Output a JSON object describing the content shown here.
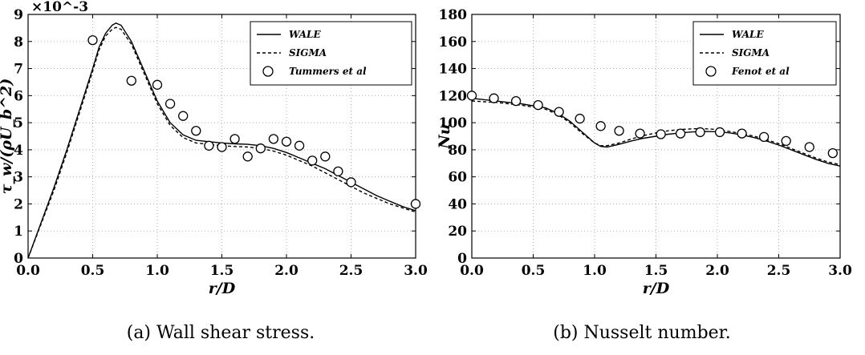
{
  "chart_data": [
    {
      "type": "line",
      "caption": "(a) Wall shear stress.",
      "xlabel": "r/D",
      "ylabel": "τ_w/(ρU_b^2)",
      "y_multiplier": "×10^-3",
      "xlim": [
        0.0,
        3.0
      ],
      "ylim": [
        0,
        9
      ],
      "xticks": [
        0.0,
        0.5,
        1.0,
        1.5,
        2.0,
        2.5,
        3.0
      ],
      "xtick_labels": [
        "0.0",
        "0.5",
        "1.0",
        "1.5",
        "2.0",
        "2.5",
        "3.0"
      ],
      "yticks": [
        0,
        1,
        2,
        3,
        4,
        5,
        6,
        7,
        8,
        9
      ],
      "ytick_labels": [
        "0",
        "1",
        "2",
        "3",
        "4",
        "5",
        "6",
        "7",
        "8",
        "9"
      ],
      "legend_position": "top-right",
      "series": [
        {
          "name": "WALE",
          "style": "solid",
          "x": [
            0.0,
            0.1,
            0.2,
            0.3,
            0.4,
            0.5,
            0.55,
            0.6,
            0.65,
            0.68,
            0.72,
            0.8,
            0.9,
            1.0,
            1.1,
            1.2,
            1.3,
            1.4,
            1.5,
            1.6,
            1.7,
            1.8,
            1.9,
            2.0,
            2.1,
            2.2,
            2.3,
            2.4,
            2.5,
            2.6,
            2.7,
            2.8,
            2.9,
            3.0
          ],
          "values": [
            0.0,
            1.3,
            2.6,
            4.0,
            5.5,
            7.0,
            7.8,
            8.3,
            8.6,
            8.68,
            8.6,
            8.0,
            6.9,
            5.8,
            5.0,
            4.55,
            4.35,
            4.3,
            4.25,
            4.22,
            4.2,
            4.15,
            4.05,
            3.9,
            3.7,
            3.5,
            3.3,
            3.05,
            2.8,
            2.55,
            2.3,
            2.1,
            1.9,
            1.75
          ]
        },
        {
          "name": "SIGMA",
          "style": "dashed",
          "x": [
            0.0,
            0.1,
            0.2,
            0.3,
            0.4,
            0.5,
            0.55,
            0.6,
            0.65,
            0.68,
            0.72,
            0.8,
            0.9,
            1.0,
            1.1,
            1.2,
            1.3,
            1.4,
            1.5,
            1.6,
            1.7,
            1.8,
            1.9,
            2.0,
            2.1,
            2.2,
            2.3,
            2.4,
            2.5,
            2.6,
            2.7,
            2.8,
            2.9,
            3.0
          ],
          "values": [
            0.0,
            1.25,
            2.5,
            3.9,
            5.4,
            6.9,
            7.7,
            8.2,
            8.45,
            8.52,
            8.45,
            7.9,
            6.8,
            5.7,
            4.9,
            4.45,
            4.25,
            4.2,
            4.15,
            4.12,
            4.1,
            4.05,
            3.95,
            3.8,
            3.6,
            3.4,
            3.15,
            2.9,
            2.65,
            2.4,
            2.2,
            2.0,
            1.85,
            1.7
          ]
        },
        {
          "name": "Tummers et al",
          "style": "markers",
          "x": [
            0.5,
            0.8,
            1.0,
            1.1,
            1.2,
            1.3,
            1.4,
            1.5,
            1.6,
            1.7,
            1.8,
            1.9,
            2.0,
            2.1,
            2.2,
            2.3,
            2.4,
            2.5,
            3.0
          ],
          "values": [
            8.05,
            6.55,
            6.4,
            5.7,
            5.25,
            4.7,
            4.15,
            4.1,
            4.4,
            3.75,
            4.05,
            4.4,
            4.3,
            4.15,
            3.6,
            3.75,
            3.2,
            2.8,
            2.0
          ]
        }
      ]
    },
    {
      "type": "line",
      "caption": "(b) Nusselt number.",
      "xlabel": "r/D",
      "ylabel": "Nu",
      "xlim": [
        0.0,
        3.0
      ],
      "ylim": [
        0,
        180
      ],
      "xticks": [
        0.0,
        0.5,
        1.0,
        1.5,
        2.0,
        2.5,
        3.0
      ],
      "xtick_labels": [
        "0.0",
        "0.5",
        "1.0",
        "1.5",
        "2.0",
        "2.5",
        "3.0"
      ],
      "yticks": [
        0,
        20,
        40,
        60,
        80,
        100,
        120,
        140,
        160,
        180
      ],
      "ytick_labels": [
        "0",
        "20",
        "40",
        "60",
        "80",
        "100",
        "120",
        "140",
        "160",
        "180"
      ],
      "legend_position": "top-right",
      "series": [
        {
          "name": "WALE",
          "style": "solid",
          "x": [
            0.0,
            0.2,
            0.4,
            0.6,
            0.7,
            0.8,
            0.9,
            1.0,
            1.05,
            1.1,
            1.2,
            1.3,
            1.4,
            1.5,
            1.6,
            1.7,
            1.8,
            1.9,
            2.0,
            2.1,
            2.2,
            2.3,
            2.4,
            2.5,
            2.6,
            2.7,
            2.8,
            2.9,
            3.0
          ],
          "values": [
            118,
            116,
            114,
            111,
            107,
            101,
            93,
            85,
            82.5,
            82,
            84,
            86.5,
            88.5,
            90,
            91.5,
            92.5,
            93.2,
            93.5,
            93.3,
            92.5,
            91,
            89,
            86.5,
            83.5,
            80,
            76.5,
            73,
            70,
            68
          ]
        },
        {
          "name": "SIGMA",
          "style": "dashed",
          "x": [
            0.0,
            0.2,
            0.4,
            0.6,
            0.7,
            0.8,
            0.9,
            1.0,
            1.05,
            1.1,
            1.2,
            1.3,
            1.4,
            1.5,
            1.6,
            1.7,
            1.8,
            1.9,
            2.0,
            2.1,
            2.2,
            2.3,
            2.4,
            2.5,
            2.6,
            2.7,
            2.8,
            2.9,
            3.0
          ],
          "values": [
            116,
            115,
            113,
            110,
            106,
            100,
            92,
            85,
            83,
            83,
            85,
            88,
            90.5,
            92.5,
            94,
            95,
            95.5,
            95.5,
            95,
            93.5,
            92,
            90,
            87.5,
            84.5,
            81,
            77.5,
            74,
            71,
            69
          ]
        },
        {
          "name": "Fenot et al",
          "style": "markers",
          "x": [
            0.0,
            0.18,
            0.36,
            0.54,
            0.71,
            0.88,
            1.05,
            1.2,
            1.37,
            1.54,
            1.7,
            1.86,
            2.02,
            2.2,
            2.38,
            2.56,
            2.75,
            2.94
          ],
          "values": [
            120,
            118,
            116,
            113,
            108,
            103,
            97.5,
            94,
            92,
            91.5,
            92,
            93,
            93,
            92,
            89.5,
            86.5,
            82,
            77.5
          ]
        }
      ]
    }
  ]
}
